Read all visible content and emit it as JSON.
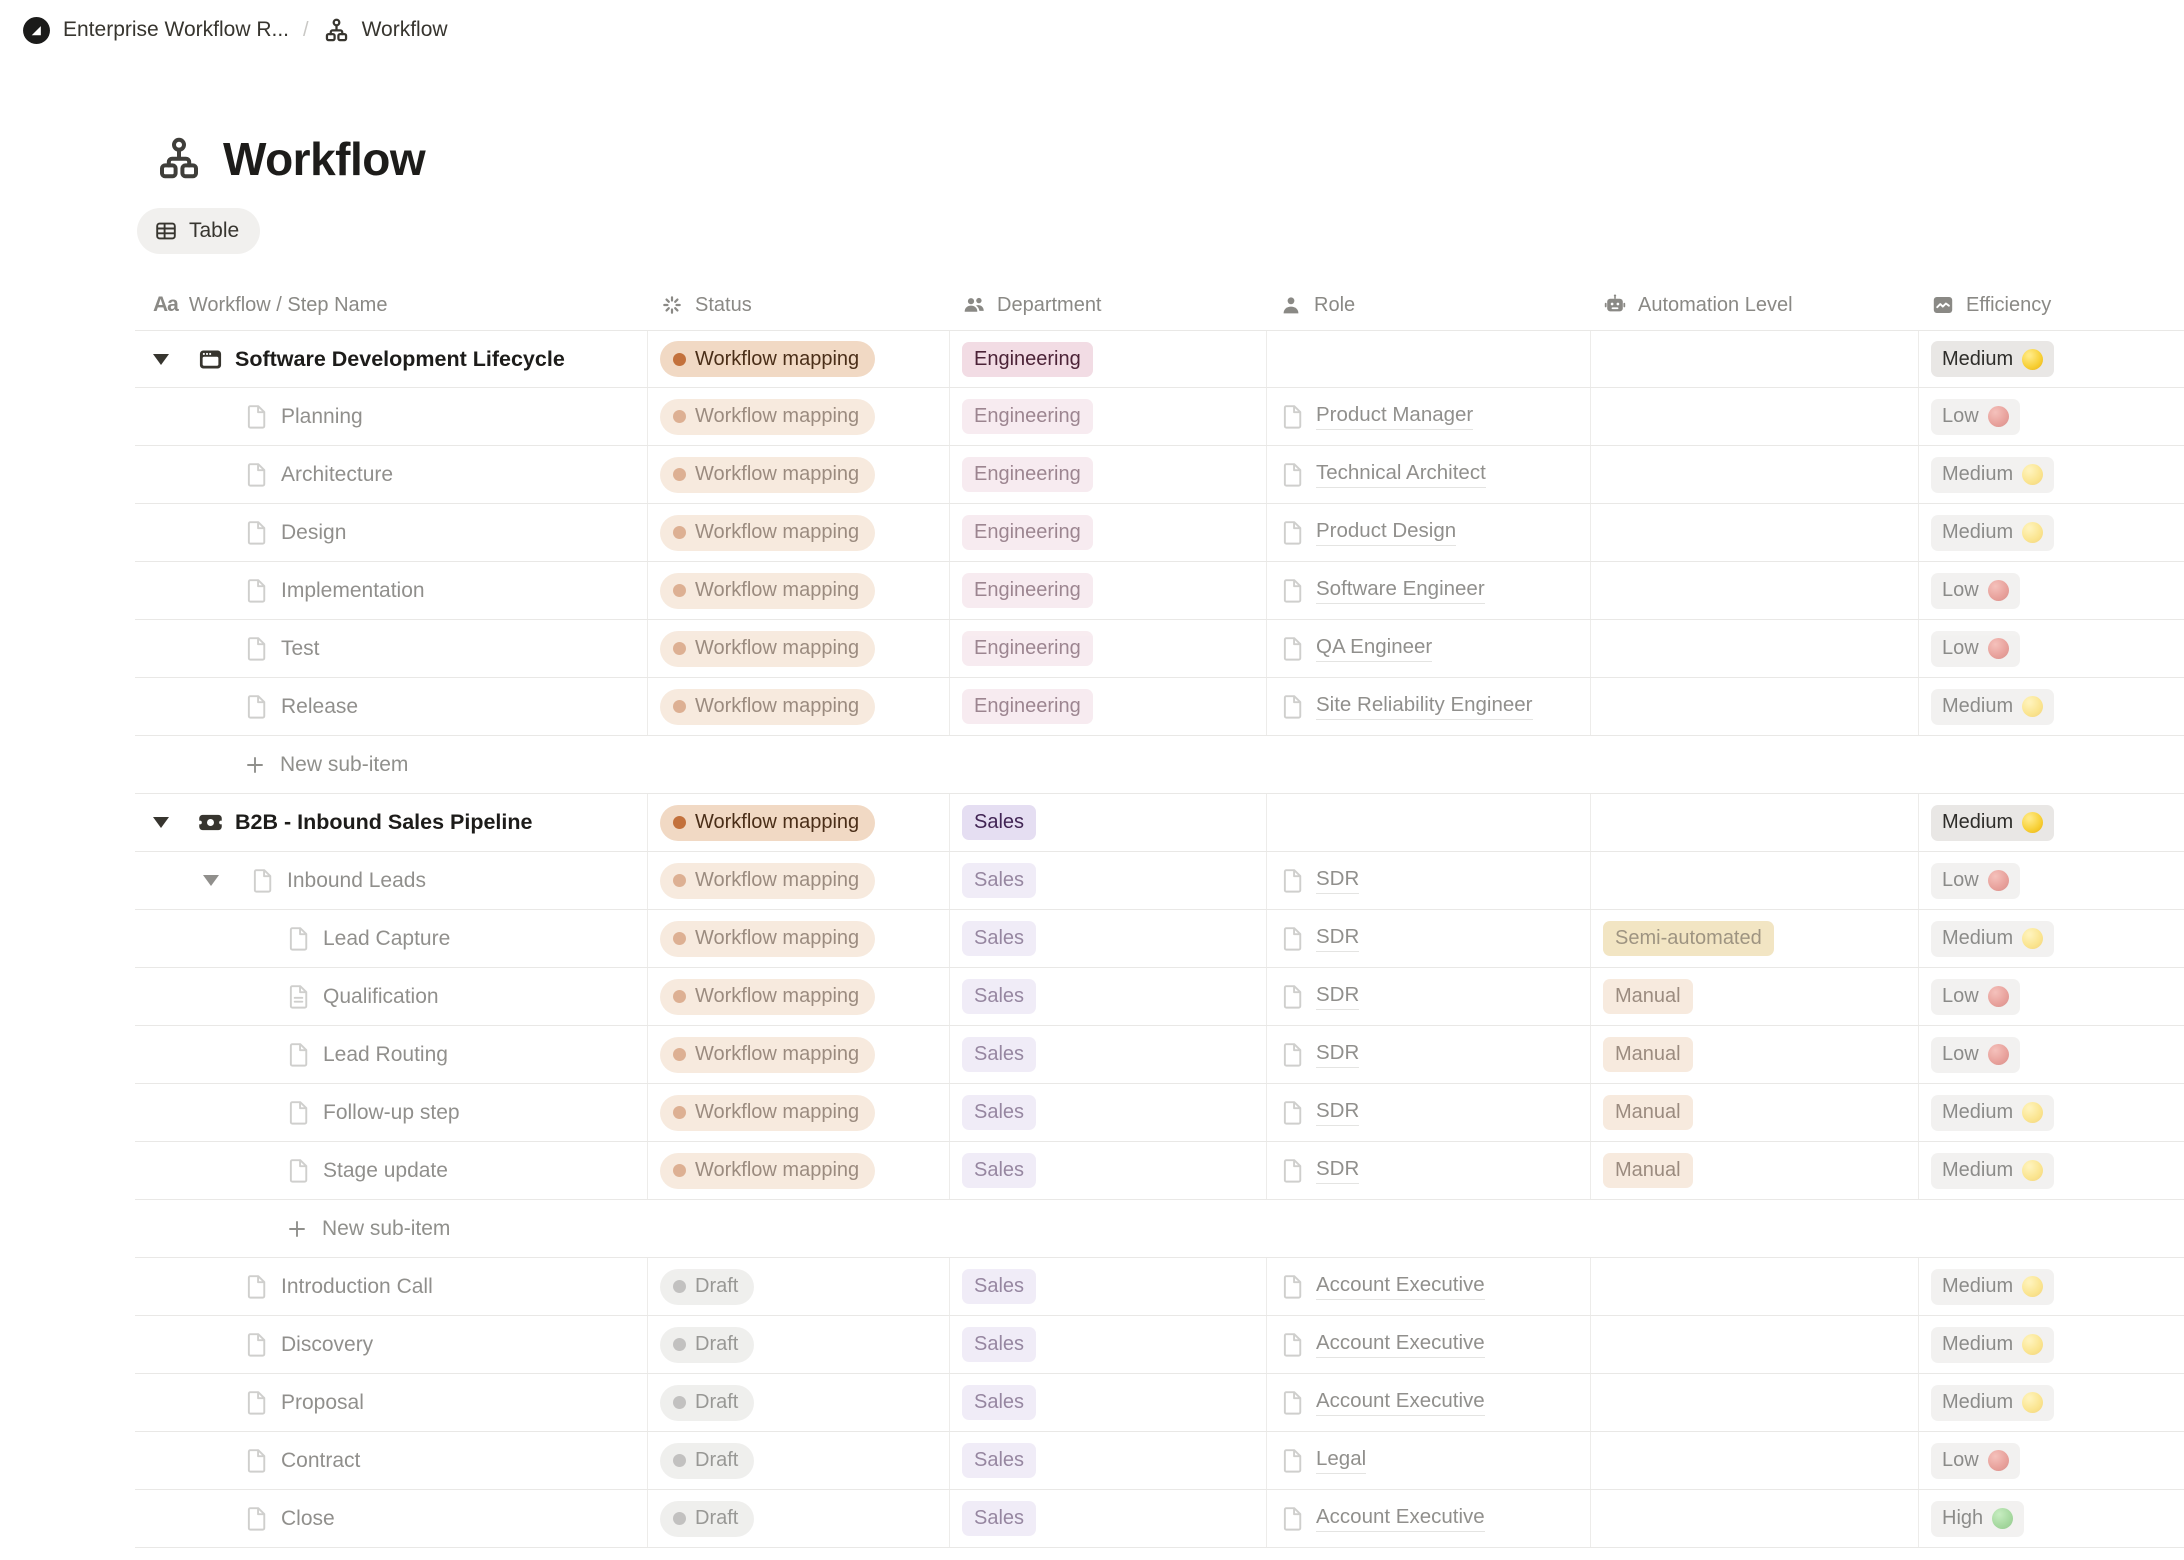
{
  "breadcrumb": {
    "workspace": "Enterprise Workflow R...",
    "separator": "/",
    "page": "Workflow"
  },
  "page": {
    "title": "Workflow",
    "view_tab": "Table"
  },
  "columns": [
    {
      "id": "name",
      "label": "Workflow / Step Name",
      "icon": "text-icon"
    },
    {
      "id": "status",
      "label": "Status",
      "icon": "status-spinner-icon"
    },
    {
      "id": "department",
      "label": "Department",
      "icon": "people-icon"
    },
    {
      "id": "role",
      "label": "Role",
      "icon": "person-icon"
    },
    {
      "id": "automation",
      "label": "Automation Level",
      "icon": "robot-icon"
    },
    {
      "id": "efficiency",
      "label": "Efficiency",
      "icon": "chart-icon"
    }
  ],
  "colors": {
    "orange-bg": "#F1D9C4",
    "orange-text": "#4A2E18",
    "orange-dot": "#C3713C",
    "pink-bg": "#F2DCE4",
    "pink-text": "#4C2337",
    "purple-bg": "#E5DEF2",
    "purple-text": "#412454",
    "yellow-bg": "#E8D093",
    "yellow-text": "#4F3D1C",
    "gray-bg": "#E3E2E0",
    "gray-text": "#45443F",
    "gray-dot": "#91908D",
    "eff-bg": "#E9E7E5",
    "eff-text": "#2E2D2A",
    "circle-yellow": "#F6CE3C",
    "circle-red": "#CE4A3E",
    "circle-green": "#47A83C"
  },
  "rows": [
    {
      "kind": "item",
      "name": "Software Development Lifecycle",
      "icon": "window",
      "level": 0,
      "expander": true,
      "bold": true,
      "faded": false,
      "status": {
        "label": "Workflow mapping",
        "variant": "orange"
      },
      "department": {
        "label": "Engineering",
        "variant": "pink"
      },
      "role": null,
      "automation": null,
      "efficiency": {
        "label": "Medium",
        "circle": "yellow"
      }
    },
    {
      "kind": "item",
      "name": "Planning",
      "icon": "page",
      "level": 1,
      "expander": false,
      "bold": false,
      "faded": true,
      "status": {
        "label": "Workflow mapping",
        "variant": "orange"
      },
      "department": {
        "label": "Engineering",
        "variant": "pink"
      },
      "role": "Product Manager",
      "automation": null,
      "efficiency": {
        "label": "Low",
        "circle": "red"
      }
    },
    {
      "kind": "item",
      "name": "Architecture",
      "icon": "page",
      "level": 1,
      "expander": false,
      "bold": false,
      "faded": true,
      "status": {
        "label": "Workflow mapping",
        "variant": "orange"
      },
      "department": {
        "label": "Engineering",
        "variant": "pink"
      },
      "role": "Technical Architect",
      "automation": null,
      "efficiency": {
        "label": "Medium",
        "circle": "yellow"
      }
    },
    {
      "kind": "item",
      "name": "Design",
      "icon": "page",
      "level": 1,
      "expander": false,
      "bold": false,
      "faded": true,
      "status": {
        "label": "Workflow mapping",
        "variant": "orange"
      },
      "department": {
        "label": "Engineering",
        "variant": "pink"
      },
      "role": "Product Design",
      "automation": null,
      "efficiency": {
        "label": "Medium",
        "circle": "yellow"
      }
    },
    {
      "kind": "item",
      "name": "Implementation",
      "icon": "page",
      "level": 1,
      "expander": false,
      "bold": false,
      "faded": true,
      "status": {
        "label": "Workflow mapping",
        "variant": "orange"
      },
      "department": {
        "label": "Engineering",
        "variant": "pink"
      },
      "role": "Software Engineer",
      "automation": null,
      "efficiency": {
        "label": "Low",
        "circle": "red"
      }
    },
    {
      "kind": "item",
      "name": "Test",
      "icon": "page",
      "level": 1,
      "expander": false,
      "bold": false,
      "faded": true,
      "status": {
        "label": "Workflow mapping",
        "variant": "orange"
      },
      "department": {
        "label": "Engineering",
        "variant": "pink"
      },
      "role": "QA Engineer",
      "automation": null,
      "efficiency": {
        "label": "Low",
        "circle": "red"
      }
    },
    {
      "kind": "item",
      "name": "Release",
      "icon": "page",
      "level": 1,
      "expander": false,
      "bold": false,
      "faded": true,
      "status": {
        "label": "Workflow mapping",
        "variant": "orange"
      },
      "department": {
        "label": "Engineering",
        "variant": "pink"
      },
      "role": "Site Reliability Engineer",
      "automation": null,
      "efficiency": {
        "label": "Medium",
        "circle": "yellow"
      }
    },
    {
      "kind": "new",
      "name": "New sub-item",
      "level": 1
    },
    {
      "kind": "item",
      "name": "B2B - Inbound Sales Pipeline",
      "icon": "banknote",
      "level": 0,
      "expander": true,
      "bold": true,
      "faded": false,
      "status": {
        "label": "Workflow mapping",
        "variant": "orange"
      },
      "department": {
        "label": "Sales",
        "variant": "purple"
      },
      "role": null,
      "automation": null,
      "efficiency": {
        "label": "Medium",
        "circle": "yellow"
      }
    },
    {
      "kind": "item",
      "name": "Inbound Leads",
      "icon": "page",
      "level": 1,
      "expander": true,
      "bold": false,
      "faded": true,
      "status": {
        "label": "Workflow mapping",
        "variant": "orange"
      },
      "department": {
        "label": "Sales",
        "variant": "purple"
      },
      "role": "SDR",
      "automation": null,
      "efficiency": {
        "label": "Low",
        "circle": "red"
      }
    },
    {
      "kind": "item",
      "name": "Lead Capture",
      "icon": "page",
      "level": 2,
      "expander": false,
      "bold": false,
      "faded": true,
      "status": {
        "label": "Workflow mapping",
        "variant": "orange"
      },
      "department": {
        "label": "Sales",
        "variant": "purple"
      },
      "role": "SDR",
      "automation": {
        "label": "Semi-automated",
        "variant": "yellow"
      },
      "efficiency": {
        "label": "Medium",
        "circle": "yellow"
      }
    },
    {
      "kind": "item",
      "name": "Qualification",
      "icon": "page-lines",
      "level": 2,
      "expander": false,
      "bold": false,
      "faded": true,
      "status": {
        "label": "Workflow mapping",
        "variant": "orange"
      },
      "department": {
        "label": "Sales",
        "variant": "purple"
      },
      "role": "SDR",
      "automation": {
        "label": "Manual",
        "variant": "orange"
      },
      "efficiency": {
        "label": "Low",
        "circle": "red"
      }
    },
    {
      "kind": "item",
      "name": "Lead Routing",
      "icon": "page",
      "level": 2,
      "expander": false,
      "bold": false,
      "faded": true,
      "status": {
        "label": "Workflow mapping",
        "variant": "orange"
      },
      "department": {
        "label": "Sales",
        "variant": "purple"
      },
      "role": "SDR",
      "automation": {
        "label": "Manual",
        "variant": "orange"
      },
      "efficiency": {
        "label": "Low",
        "circle": "red"
      }
    },
    {
      "kind": "item",
      "name": "Follow-up step",
      "icon": "page",
      "level": 2,
      "expander": false,
      "bold": false,
      "faded": true,
      "status": {
        "label": "Workflow mapping",
        "variant": "orange"
      },
      "department": {
        "label": "Sales",
        "variant": "purple"
      },
      "role": "SDR",
      "automation": {
        "label": "Manual",
        "variant": "orange"
      },
      "efficiency": {
        "label": "Medium",
        "circle": "yellow"
      }
    },
    {
      "kind": "item",
      "name": "Stage update",
      "icon": "page",
      "level": 2,
      "expander": false,
      "bold": false,
      "faded": true,
      "status": {
        "label": "Workflow mapping",
        "variant": "orange"
      },
      "department": {
        "label": "Sales",
        "variant": "purple"
      },
      "role": "SDR",
      "automation": {
        "label": "Manual",
        "variant": "orange"
      },
      "efficiency": {
        "label": "Medium",
        "circle": "yellow"
      }
    },
    {
      "kind": "new",
      "name": "New sub-item",
      "level": 2
    },
    {
      "kind": "item",
      "name": "Introduction Call",
      "icon": "page",
      "level": 1,
      "expander": false,
      "bold": false,
      "faded": true,
      "status": {
        "label": "Draft",
        "variant": "gray"
      },
      "department": {
        "label": "Sales",
        "variant": "purple"
      },
      "role": "Account Executive",
      "automation": null,
      "efficiency": {
        "label": "Medium",
        "circle": "yellow"
      }
    },
    {
      "kind": "item",
      "name": "Discovery",
      "icon": "page",
      "level": 1,
      "expander": false,
      "bold": false,
      "faded": true,
      "status": {
        "label": "Draft",
        "variant": "gray"
      },
      "department": {
        "label": "Sales",
        "variant": "purple"
      },
      "role": "Account Executive",
      "automation": null,
      "efficiency": {
        "label": "Medium",
        "circle": "yellow"
      }
    },
    {
      "kind": "item",
      "name": "Proposal",
      "icon": "page",
      "level": 1,
      "expander": false,
      "bold": false,
      "faded": true,
      "status": {
        "label": "Draft",
        "variant": "gray"
      },
      "department": {
        "label": "Sales",
        "variant": "purple"
      },
      "role": "Account Executive",
      "automation": null,
      "efficiency": {
        "label": "Medium",
        "circle": "yellow"
      }
    },
    {
      "kind": "item",
      "name": "Contract",
      "icon": "page",
      "level": 1,
      "expander": false,
      "bold": false,
      "faded": true,
      "status": {
        "label": "Draft",
        "variant": "gray"
      },
      "department": {
        "label": "Sales",
        "variant": "purple"
      },
      "role": "Legal",
      "automation": null,
      "efficiency": {
        "label": "Low",
        "circle": "red"
      }
    },
    {
      "kind": "item",
      "name": "Close",
      "icon": "page",
      "level": 1,
      "expander": false,
      "bold": false,
      "faded": true,
      "status": {
        "label": "Draft",
        "variant": "gray"
      },
      "department": {
        "label": "Sales",
        "variant": "purple"
      },
      "role": "Account Executive",
      "automation": null,
      "efficiency": {
        "label": "High",
        "circle": "green"
      }
    }
  ]
}
